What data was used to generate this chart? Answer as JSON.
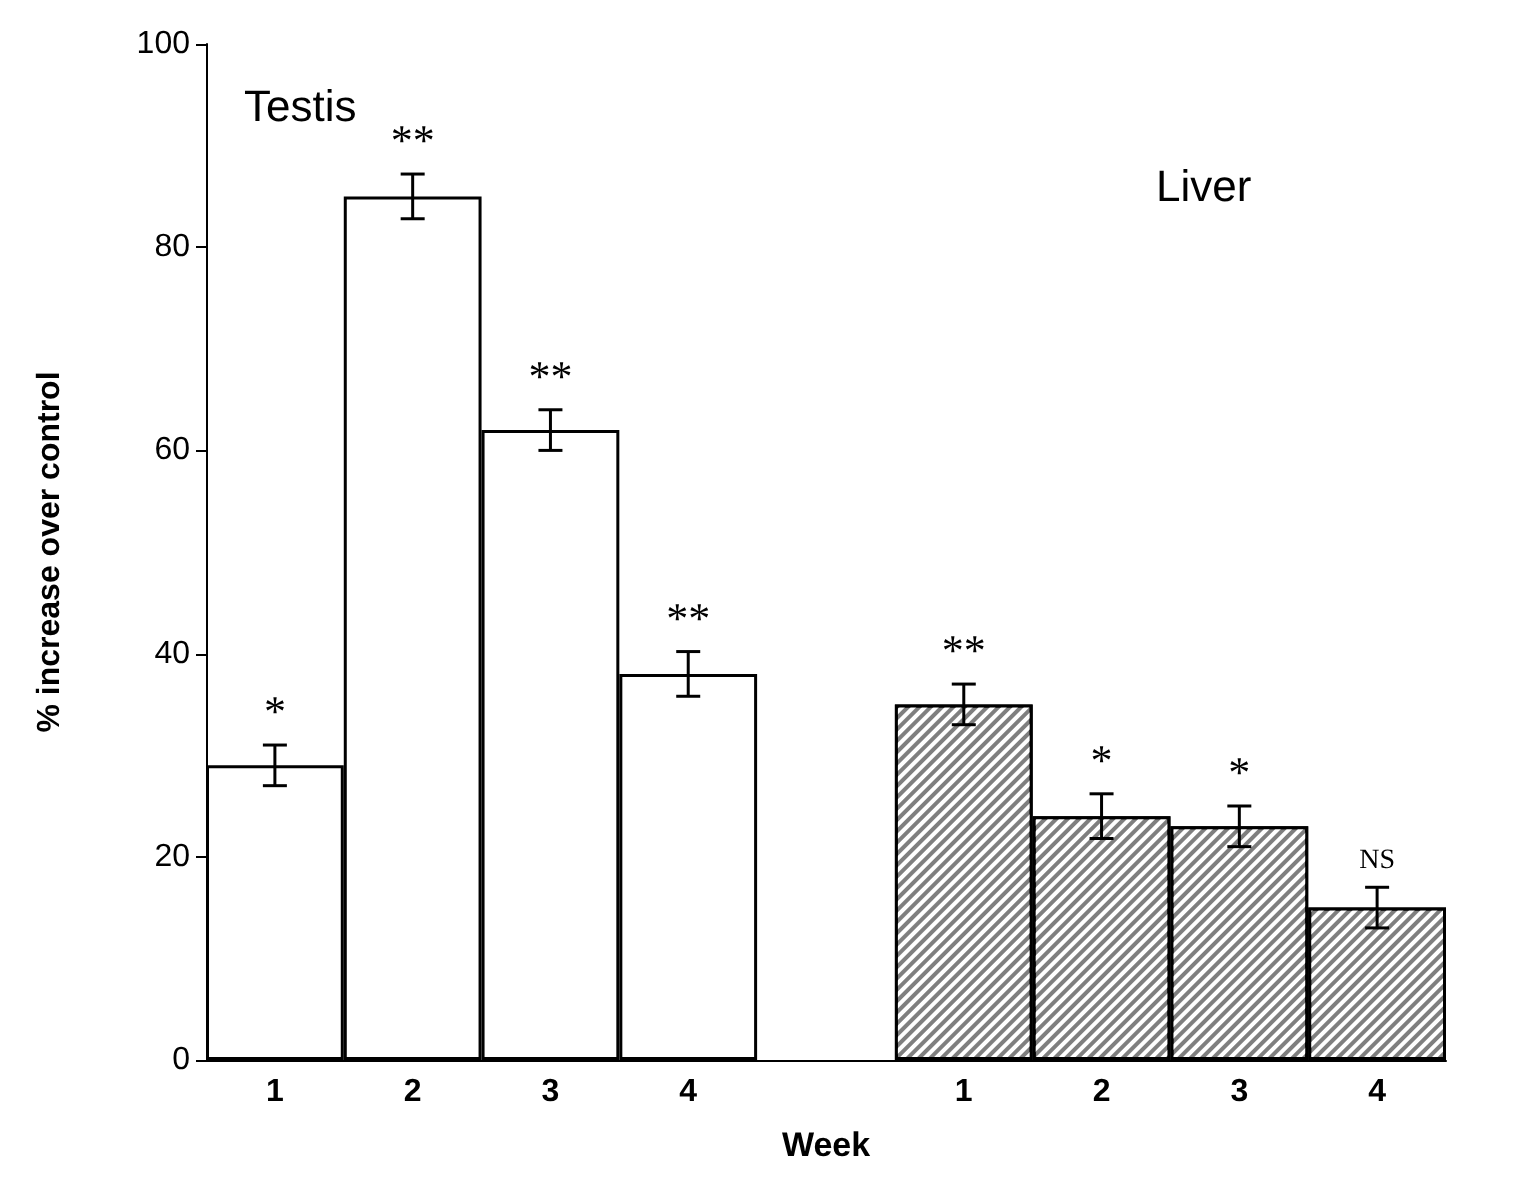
{
  "chart_data": {
    "type": "bar",
    "xlabel": "Week",
    "ylabel": "% increase over control",
    "categories": [
      "1",
      "2",
      "3",
      "4",
      null,
      "1",
      "2",
      "3",
      "4"
    ],
    "series": [
      {
        "color": "#ffffff",
        "values": [
          29,
          85,
          62,
          38,
          null,
          null,
          null,
          null,
          null
        ],
        "errors": [
          2,
          2.2,
          2,
          2.2,
          null,
          null,
          null,
          null,
          null
        ],
        "value_labels": [
          "*",
          "**",
          "**",
          "**",
          null,
          null,
          null,
          null,
          null
        ]
      },
      {
        "color": "#7f7f7f",
        "values": [
          null,
          null,
          null,
          null,
          null,
          35,
          24,
          23,
          15
        ],
        "errors": [
          null,
          null,
          null,
          null,
          null,
          2,
          2.2,
          2,
          2
        ],
        "value_labels": [
          null,
          null,
          null,
          null,
          null,
          "**",
          "*",
          "*",
          "NS"
        ]
      }
    ],
    "annotations": [
      "Testis",
      "Liver"
    ],
    "ylim": [
      0,
      100
    ],
    "yticks": [
      0,
      20,
      40,
      60,
      80,
      100
    ],
    "grid": false
  }
}
